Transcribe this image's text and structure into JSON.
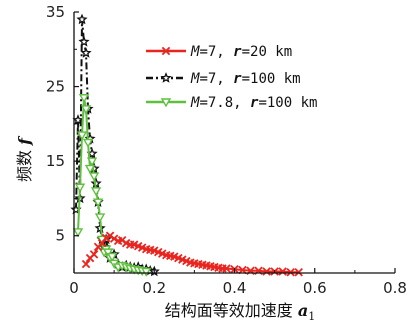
{
  "chart_data": {
    "type": "line",
    "xlabel": "结构面等效加速度 a",
    "xlabel_parts": {
      "main": "结构面等效加速度 ",
      "var": "a",
      "sub": "1"
    },
    "ylabel": "频数 f",
    "ylabel_parts": {
      "main": "频数 ",
      "var": "f"
    },
    "xlim": [
      0,
      0.8
    ],
    "ylim": [
      0,
      35
    ],
    "x_ticks": [
      0,
      0.2,
      0.4,
      0.6,
      0.8
    ],
    "x_tick_labels": [
      "0",
      "0.2",
      "0.4",
      "0.6",
      "0.8"
    ],
    "y_ticks": [
      5,
      15,
      25,
      35
    ],
    "y_tick_labels": [
      "5",
      "15",
      "25",
      "35"
    ],
    "legend_position": "top-right",
    "series": [
      {
        "name": "M=7, r=20 km",
        "legend_parts": [
          {
            "t": "M",
            "style": "ital"
          },
          {
            "t": "=7, "
          },
          {
            "t": "r",
            "style": "bolditalic"
          },
          {
            "t": "=20 km"
          }
        ],
        "color": "#e8251f",
        "marker": "x",
        "dash": "solid",
        "x": [
          0.03,
          0.04,
          0.05,
          0.06,
          0.07,
          0.08,
          0.09,
          0.1,
          0.11,
          0.12,
          0.13,
          0.14,
          0.15,
          0.16,
          0.17,
          0.18,
          0.19,
          0.2,
          0.21,
          0.22,
          0.23,
          0.24,
          0.25,
          0.26,
          0.27,
          0.28,
          0.29,
          0.3,
          0.31,
          0.32,
          0.33,
          0.34,
          0.35,
          0.36,
          0.37,
          0.38,
          0.4,
          0.42,
          0.44,
          0.46,
          0.48,
          0.5,
          0.52,
          0.54,
          0.56
        ],
        "y": [
          1.2,
          2,
          2.5,
          3.5,
          4,
          4.7,
          5,
          4.6,
          4.3,
          4.4,
          4,
          3.8,
          3.8,
          3.6,
          3.4,
          3.2,
          3.1,
          3,
          2.8,
          2.6,
          2.4,
          2.3,
          2.2,
          2,
          1.8,
          1.6,
          1.4,
          1.3,
          1.2,
          1.1,
          1,
          0.9,
          0.8,
          0.7,
          0.6,
          0.6,
          0.5,
          0.4,
          0.3,
          0.3,
          0.2,
          0.2,
          0.2,
          0.1,
          0.1
        ]
      },
      {
        "name": "M=7, r=100 km",
        "legend_parts": [
          {
            "t": "M",
            "style": "ital"
          },
          {
            "t": "=7, "
          },
          {
            "t": "r",
            "style": "bolditalic"
          },
          {
            "t": "=100 km"
          }
        ],
        "color": "#111111",
        "marker": "star",
        "dash": "dashdot",
        "x": [
          0.005,
          0.01,
          0.015,
          0.02,
          0.025,
          0.03,
          0.035,
          0.04,
          0.045,
          0.05,
          0.055,
          0.06,
          0.065,
          0.07,
          0.075,
          0.08,
          0.085,
          0.09,
          0.1,
          0.11,
          0.12,
          0.13,
          0.14,
          0.15,
          0.16,
          0.17,
          0.18,
          0.19,
          0.2
        ],
        "y": [
          8.5,
          20.5,
          10,
          34,
          31,
          29.5,
          22,
          18,
          16,
          14,
          12,
          9.5,
          6,
          4.5,
          3.5,
          4.5,
          3,
          2,
          2.5,
          1.2,
          0.8,
          1,
          0.8,
          0.7,
          0.8,
          0.5,
          0.5,
          0.3,
          0.2
        ]
      },
      {
        "name": "M=7.8, r=100 km",
        "legend_parts": [
          {
            "t": "M",
            "style": "ital"
          },
          {
            "t": "=7.8, "
          },
          {
            "t": "r",
            "style": "bolditalic"
          },
          {
            "t": "=100 km"
          }
        ],
        "color": "#5fbf3f",
        "marker": "triangle-down",
        "dash": "solid",
        "x": [
          0.01,
          0.015,
          0.02,
          0.025,
          0.03,
          0.035,
          0.04,
          0.045,
          0.05,
          0.055,
          0.06,
          0.065,
          0.07,
          0.075,
          0.08,
          0.085,
          0.09,
          0.095,
          0.1,
          0.11,
          0.12,
          0.13,
          0.14,
          0.15,
          0.16,
          0.17,
          0.18
        ],
        "y": [
          5.5,
          11.5,
          18.5,
          23.5,
          22,
          17.5,
          14,
          15,
          13,
          11,
          9.5,
          7.5,
          4.5,
          2.8,
          3.2,
          2.8,
          2,
          2.2,
          1.3,
          0.8,
          1,
          0.8,
          0.6,
          0.5,
          0.4,
          0.3,
          0.2
        ]
      }
    ]
  }
}
